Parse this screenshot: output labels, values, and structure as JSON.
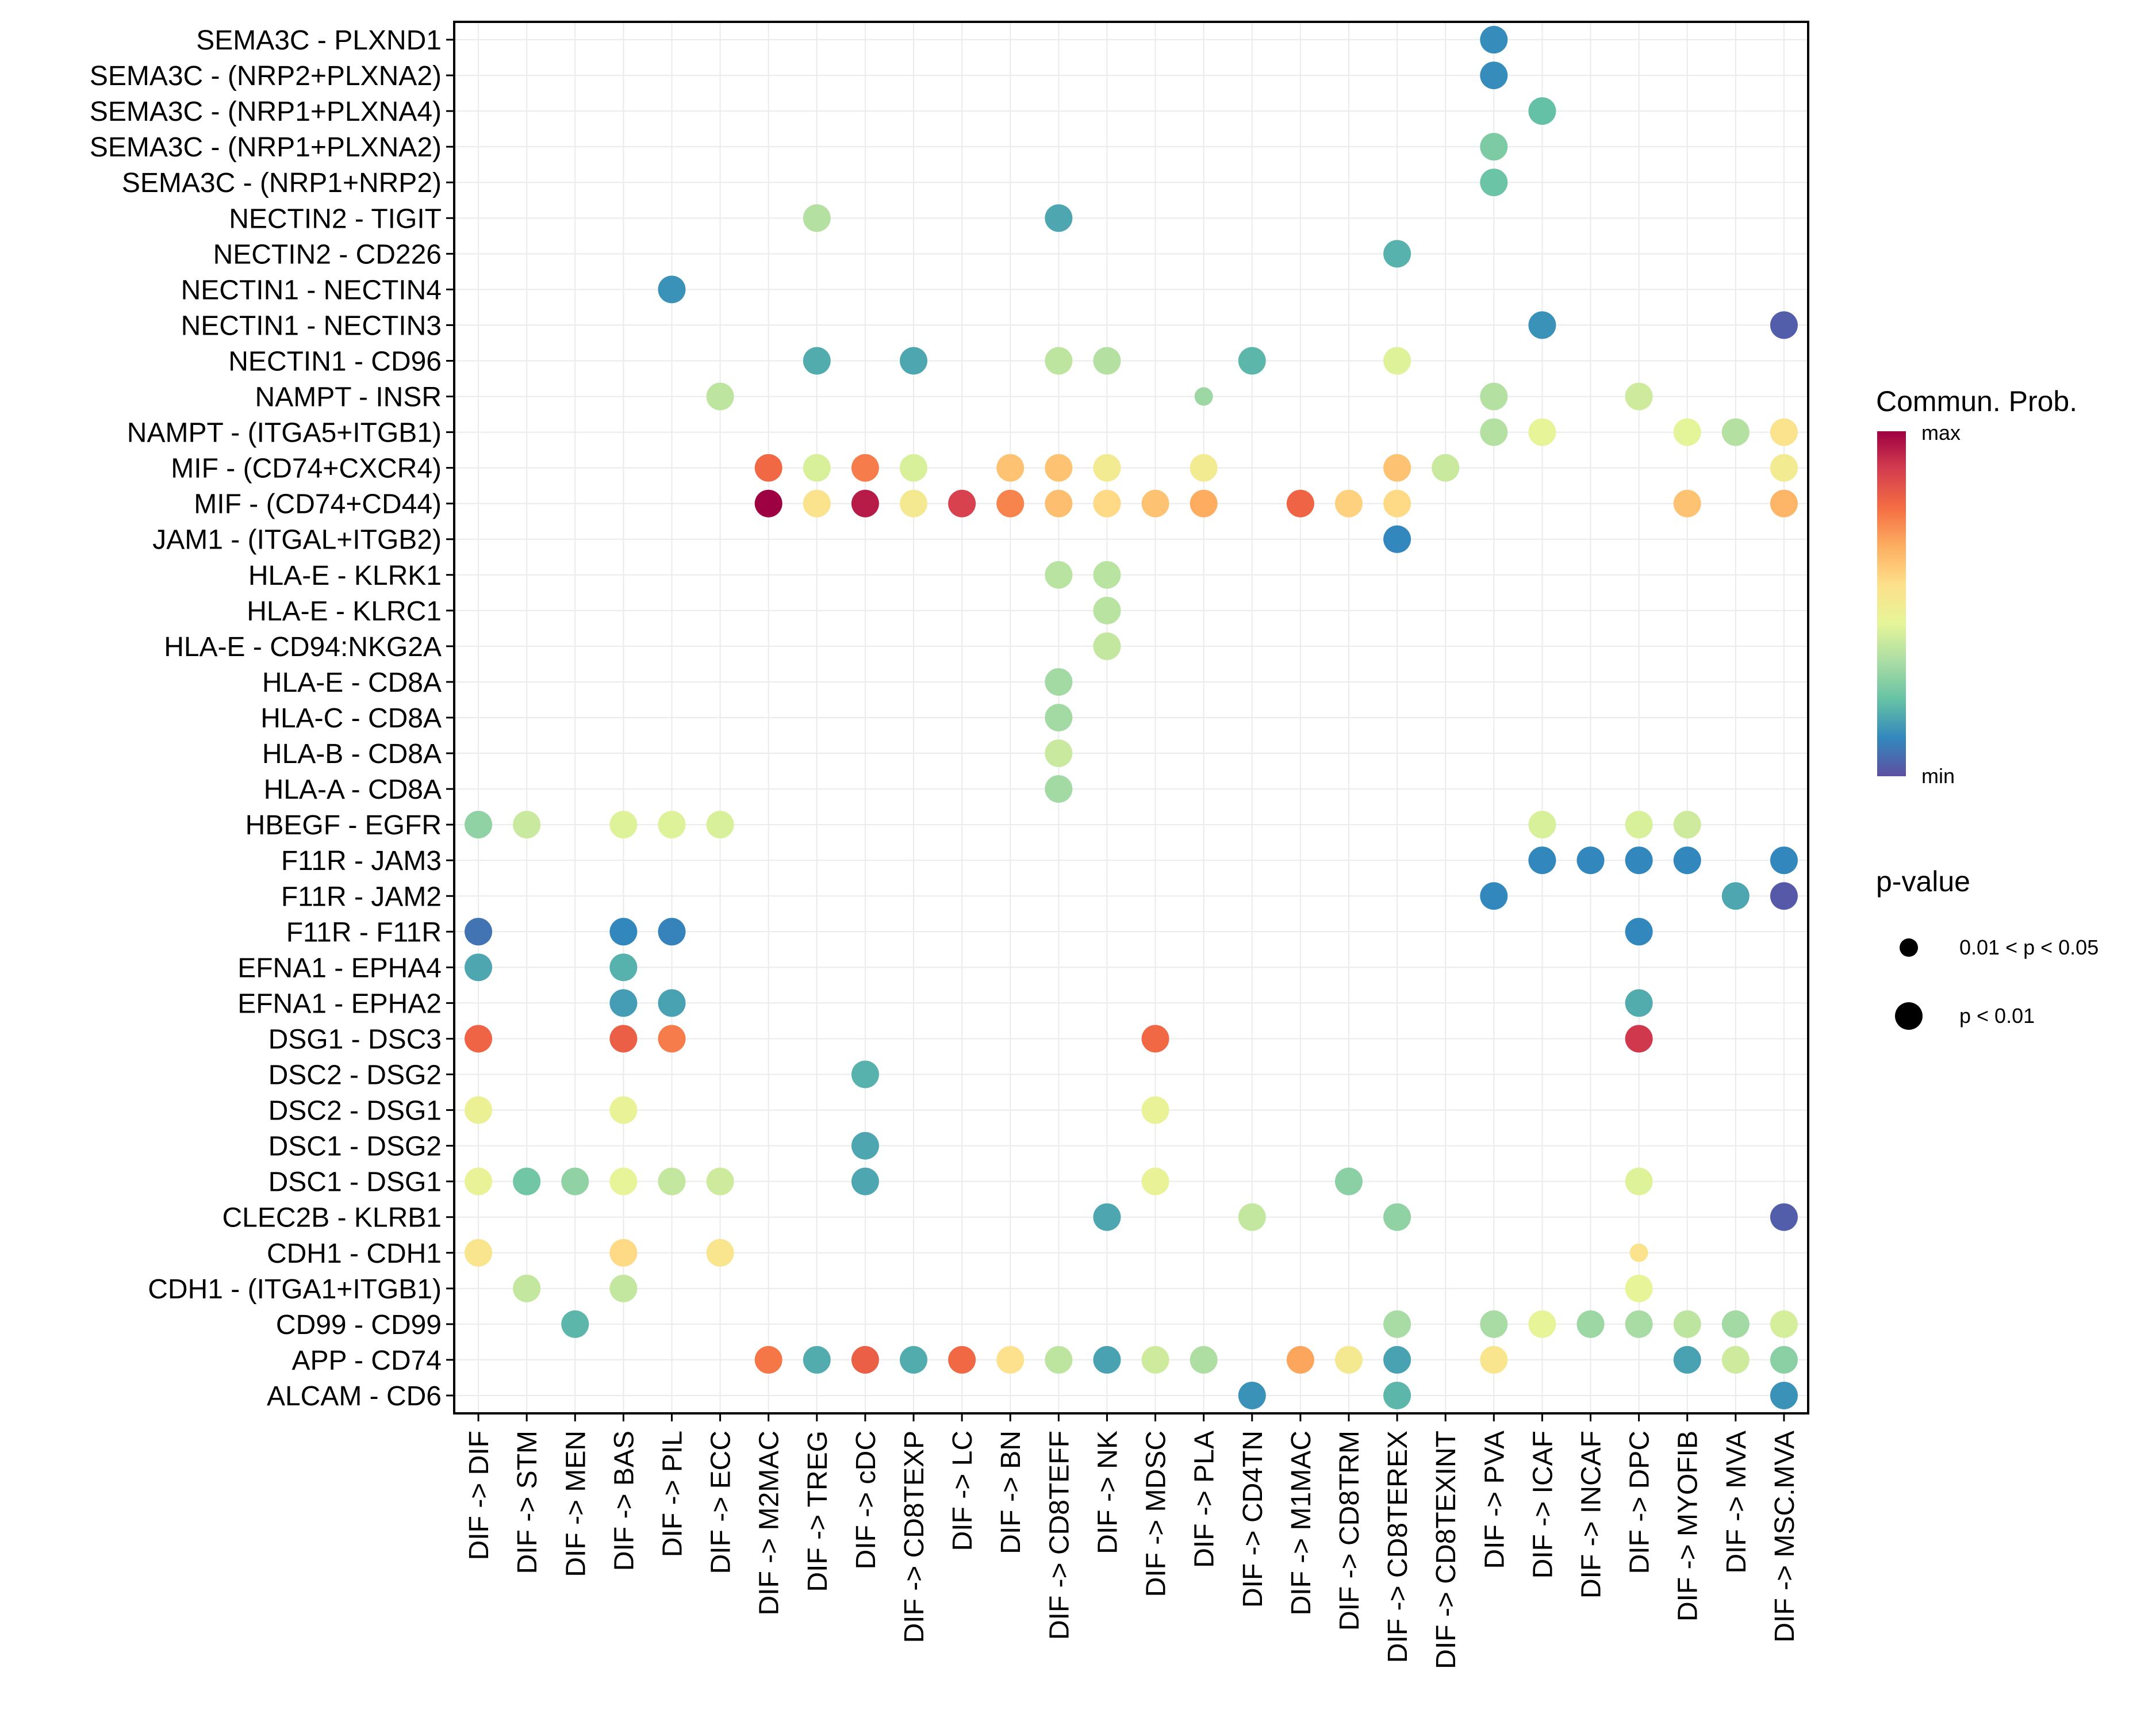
{
  "chart_data": {
    "type": "scatter",
    "subtype": "dot-plot",
    "title": "",
    "xlabel": "",
    "ylabel": "",
    "grid": true,
    "legend_position": "right",
    "x_categories": [
      "DIF -> DIF",
      "DIF -> STM",
      "DIF -> MEN",
      "DIF -> BAS",
      "DIF -> PIL",
      "DIF -> ECC",
      "DIF -> M2MAC",
      "DIF -> TREG",
      "DIF -> cDC",
      "DIF -> CD8TEXP",
      "DIF -> LC",
      "DIF -> BN",
      "DIF -> CD8TEFF",
      "DIF -> NK",
      "DIF -> MDSC",
      "DIF -> PLA",
      "DIF -> CD4TN",
      "DIF -> M1MAC",
      "DIF -> CD8TRM",
      "DIF -> CD8TEREX",
      "DIF -> CD8TEXINT",
      "DIF -> PVA",
      "DIF -> ICAF",
      "DIF -> INCAF",
      "DIF -> DPC",
      "DIF -> MYOFIB",
      "DIF -> MVA",
      "DIF -> MSC.MVA"
    ],
    "y_categories": [
      "SEMA3C - PLXND1",
      "SEMA3C - (NRP2+PLXNA2)",
      "SEMA3C - (NRP1+PLXNA4)",
      "SEMA3C - (NRP1+PLXNA2)",
      "SEMA3C - (NRP1+NRP2)",
      "NECTIN2 - TIGIT",
      "NECTIN2 - CD226",
      "NECTIN1 - NECTIN4",
      "NECTIN1 - NECTIN3",
      "NECTIN1 - CD96",
      "NAMPT - INSR",
      "NAMPT - (ITGA5+ITGB1)",
      "MIF - (CD74+CXCR4)",
      "MIF - (CD74+CD44)",
      "JAM1 - (ITGAL+ITGB2)",
      "HLA-E - KLRK1",
      "HLA-E - KLRC1",
      "HLA-E - CD94:NKG2A",
      "HLA-E - CD8A",
      "HLA-C - CD8A",
      "HLA-B - CD8A",
      "HLA-A - CD8A",
      "HBEGF - EGFR",
      "F11R - JAM3",
      "F11R - JAM2",
      "F11R - F11R",
      "EFNA1 - EPHA4",
      "EFNA1 - EPHA2",
      "DSG1 - DSC3",
      "DSC2 - DSG2",
      "DSC2 - DSG1",
      "DSC1 - DSG2",
      "DSC1 - DSG1",
      "CLEC2B - KLRB1",
      "CDH1 - CDH1",
      "CDH1 - (ITGA1+ITGB1)",
      "CD99 - CD99",
      "APP - CD74",
      "ALCAM - CD6"
    ],
    "color_legend": {
      "title": "Commun. Prob.",
      "min_label": "min",
      "max_label": "max",
      "palette": [
        "#5E4FA2",
        "#3288BD",
        "#66C2A5",
        "#ABDDA4",
        "#E6F598",
        "#FEE08B",
        "#FDAE61",
        "#F46D43",
        "#D53E4F",
        "#9E0142"
      ]
    },
    "size_legend": {
      "title": "p-value",
      "entries": [
        {
          "label": "0.01 < p < 0.05",
          "size": "small"
        },
        {
          "label": "p < 0.01",
          "size": "large"
        }
      ]
    },
    "points_note": "prob is relative communication probability on a 0 (min) to 1 (max) scale; p is p-value class: 'small' = 0.01<p<0.05, 'large' = p<0.01",
    "points": [
      {
        "y": "SEMA3C - PLXND1",
        "x": "DIF -> PVA",
        "prob": 0.12,
        "p": "large"
      },
      {
        "y": "SEMA3C - (NRP2+PLXNA2)",
        "x": "DIF -> PVA",
        "prob": 0.12,
        "p": "large"
      },
      {
        "y": "SEMA3C - (NRP1+PLXNA4)",
        "x": "DIF -> ICAF",
        "prob": 0.22,
        "p": "large"
      },
      {
        "y": "SEMA3C - (NRP1+PLXNA2)",
        "x": "DIF -> PVA",
        "prob": 0.26,
        "p": "large"
      },
      {
        "y": "SEMA3C - (NRP1+NRP2)",
        "x": "DIF -> PVA",
        "prob": 0.23,
        "p": "large"
      },
      {
        "y": "NECTIN2 - TIGIT",
        "x": "DIF -> TREG",
        "prob": 0.35,
        "p": "large"
      },
      {
        "y": "NECTIN2 - TIGIT",
        "x": "DIF -> CD8TEFF",
        "prob": 0.17,
        "p": "large"
      },
      {
        "y": "NECTIN2 - CD226",
        "x": "DIF -> CD8TEREX",
        "prob": 0.19,
        "p": "large"
      },
      {
        "y": "NECTIN1 - NECTIN4",
        "x": "DIF -> PIL",
        "prob": 0.13,
        "p": "large"
      },
      {
        "y": "NECTIN1 - NECTIN3",
        "x": "DIF -> ICAF",
        "prob": 0.13,
        "p": "large"
      },
      {
        "y": "NECTIN1 - NECTIN3",
        "x": "DIF -> MSC.MVA",
        "prob": 0.03,
        "p": "large"
      },
      {
        "y": "NECTIN1 - CD96",
        "x": "DIF -> TREG",
        "prob": 0.18,
        "p": "large"
      },
      {
        "y": "NECTIN1 - CD96",
        "x": "DIF -> CD8TEXP",
        "prob": 0.17,
        "p": "large"
      },
      {
        "y": "NECTIN1 - CD96",
        "x": "DIF -> CD8TEFF",
        "prob": 0.37,
        "p": "large"
      },
      {
        "y": "NECTIN1 - CD96",
        "x": "DIF -> NK",
        "prob": 0.35,
        "p": "large"
      },
      {
        "y": "NECTIN1 - CD96",
        "x": "DIF -> CD4TN",
        "prob": 0.2,
        "p": "large"
      },
      {
        "y": "NECTIN1 - CD96",
        "x": "DIF -> CD8TEREX",
        "prob": 0.43,
        "p": "large"
      },
      {
        "y": "NAMPT - INSR",
        "x": "DIF -> ECC",
        "prob": 0.37,
        "p": "large"
      },
      {
        "y": "NAMPT - INSR",
        "x": "DIF -> PLA",
        "prob": 0.31,
        "p": "small"
      },
      {
        "y": "NAMPT - INSR",
        "x": "DIF -> PVA",
        "prob": 0.35,
        "p": "large"
      },
      {
        "y": "NAMPT - INSR",
        "x": "DIF -> DPC",
        "prob": 0.4,
        "p": "large"
      },
      {
        "y": "NAMPT - (ITGA5+ITGB1)",
        "x": "DIF -> PVA",
        "prob": 0.35,
        "p": "large"
      },
      {
        "y": "NAMPT - (ITGA5+ITGB1)",
        "x": "DIF -> ICAF",
        "prob": 0.45,
        "p": "large"
      },
      {
        "y": "NAMPT - (ITGA5+ITGB1)",
        "x": "DIF -> MYOFIB",
        "prob": 0.44,
        "p": "large"
      },
      {
        "y": "NAMPT - (ITGA5+ITGB1)",
        "x": "DIF -> MVA",
        "prob": 0.35,
        "p": "large"
      },
      {
        "y": "NAMPT - (ITGA5+ITGB1)",
        "x": "DIF -> MSC.MVA",
        "prob": 0.54,
        "p": "large"
      },
      {
        "y": "MIF - (CD74+CXCR4)",
        "x": "DIF -> M2MAC",
        "prob": 0.79,
        "p": "large"
      },
      {
        "y": "MIF - (CD74+CXCR4)",
        "x": "DIF -> TREG",
        "prob": 0.42,
        "p": "large"
      },
      {
        "y": "MIF - (CD74+CXCR4)",
        "x": "DIF -> cDC",
        "prob": 0.75,
        "p": "large"
      },
      {
        "y": "MIF - (CD74+CXCR4)",
        "x": "DIF -> CD8TEXP",
        "prob": 0.42,
        "p": "large"
      },
      {
        "y": "MIF - (CD74+CXCR4)",
        "x": "DIF -> BN",
        "prob": 0.62,
        "p": "large"
      },
      {
        "y": "MIF - (CD74+CXCR4)",
        "x": "DIF -> CD8TEFF",
        "prob": 0.62,
        "p": "large"
      },
      {
        "y": "MIF - (CD74+CXCR4)",
        "x": "DIF -> NK",
        "prob": 0.5,
        "p": "large"
      },
      {
        "y": "MIF - (CD74+CXCR4)",
        "x": "DIF -> PLA",
        "prob": 0.5,
        "p": "large"
      },
      {
        "y": "MIF - (CD74+CXCR4)",
        "x": "DIF -> CD8TEREX",
        "prob": 0.62,
        "p": "large"
      },
      {
        "y": "MIF - (CD74+CXCR4)",
        "x": "DIF -> CD8TEXINT",
        "prob": 0.39,
        "p": "large"
      },
      {
        "y": "MIF - (CD74+CXCR4)",
        "x": "DIF -> MSC.MVA",
        "prob": 0.5,
        "p": "large"
      },
      {
        "y": "MIF - (CD74+CD44)",
        "x": "DIF -> M2MAC",
        "prob": 1.0,
        "p": "large"
      },
      {
        "y": "MIF - (CD74+CD44)",
        "x": "DIF -> TREG",
        "prob": 0.54,
        "p": "large"
      },
      {
        "y": "MIF - (CD74+CD44)",
        "x": "DIF -> cDC",
        "prob": 0.95,
        "p": "large"
      },
      {
        "y": "MIF - (CD74+CD44)",
        "x": "DIF -> CD8TEXP",
        "prob": 0.51,
        "p": "large"
      },
      {
        "y": "MIF - (CD74+CD44)",
        "x": "DIF -> LC",
        "prob": 0.88,
        "p": "large"
      },
      {
        "y": "MIF - (CD74+CD44)",
        "x": "DIF -> BN",
        "prob": 0.74,
        "p": "large"
      },
      {
        "y": "MIF - (CD74+CD44)",
        "x": "DIF -> CD8TEFF",
        "prob": 0.63,
        "p": "large"
      },
      {
        "y": "MIF - (CD74+CD44)",
        "x": "DIF -> NK",
        "prob": 0.57,
        "p": "large"
      },
      {
        "y": "MIF - (CD74+CD44)",
        "x": "DIF -> MDSC",
        "prob": 0.62,
        "p": "large"
      },
      {
        "y": "MIF - (CD74+CD44)",
        "x": "DIF -> PLA",
        "prob": 0.67,
        "p": "large"
      },
      {
        "y": "MIF - (CD74+CD44)",
        "x": "DIF -> M1MAC",
        "prob": 0.8,
        "p": "large"
      },
      {
        "y": "MIF - (CD74+CD44)",
        "x": "DIF -> CD8TRM",
        "prob": 0.59,
        "p": "large"
      },
      {
        "y": "MIF - (CD74+CD44)",
        "x": "DIF -> CD8TEREX",
        "prob": 0.57,
        "p": "large"
      },
      {
        "y": "MIF - (CD74+CD44)",
        "x": "DIF -> MYOFIB",
        "prob": 0.62,
        "p": "large"
      },
      {
        "y": "MIF - (CD74+CD44)",
        "x": "DIF -> MSC.MVA",
        "prob": 0.65,
        "p": "large"
      },
      {
        "y": "JAM1 - (ITGAL+ITGB2)",
        "x": "DIF -> CD8TEREX",
        "prob": 0.11,
        "p": "large"
      },
      {
        "y": "HLA-E - KLRK1",
        "x": "DIF -> CD8TEFF",
        "prob": 0.36,
        "p": "large"
      },
      {
        "y": "HLA-E - KLRK1",
        "x": "DIF -> NK",
        "prob": 0.36,
        "p": "large"
      },
      {
        "y": "HLA-E - KLRC1",
        "x": "DIF -> NK",
        "prob": 0.36,
        "p": "large"
      },
      {
        "y": "HLA-E - CD94:NKG2A",
        "x": "DIF -> NK",
        "prob": 0.38,
        "p": "large"
      },
      {
        "y": "HLA-E - CD8A",
        "x": "DIF -> CD8TEFF",
        "prob": 0.32,
        "p": "large"
      },
      {
        "y": "HLA-C - CD8A",
        "x": "DIF -> CD8TEFF",
        "prob": 0.32,
        "p": "large"
      },
      {
        "y": "HLA-B - CD8A",
        "x": "DIF -> CD8TEFF",
        "prob": 0.39,
        "p": "large"
      },
      {
        "y": "HLA-A - CD8A",
        "x": "DIF -> CD8TEFF",
        "prob": 0.32,
        "p": "large"
      },
      {
        "y": "HBEGF - EGFR",
        "x": "DIF -> DIF",
        "prob": 0.29,
        "p": "large"
      },
      {
        "y": "HBEGF - EGFR",
        "x": "DIF -> STM",
        "prob": 0.39,
        "p": "large"
      },
      {
        "y": "HBEGF - EGFR",
        "x": "DIF -> BAS",
        "prob": 0.43,
        "p": "large"
      },
      {
        "y": "HBEGF - EGFR",
        "x": "DIF -> PIL",
        "prob": 0.43,
        "p": "large"
      },
      {
        "y": "HBEGF - EGFR",
        "x": "DIF -> ECC",
        "prob": 0.42,
        "p": "large"
      },
      {
        "y": "HBEGF - EGFR",
        "x": "DIF -> ICAF",
        "prob": 0.42,
        "p": "large"
      },
      {
        "y": "HBEGF - EGFR",
        "x": "DIF -> DPC",
        "prob": 0.42,
        "p": "large"
      },
      {
        "y": "HBEGF - EGFR",
        "x": "DIF -> MYOFIB",
        "prob": 0.4,
        "p": "large"
      },
      {
        "y": "F11R - JAM3",
        "x": "DIF -> ICAF",
        "prob": 0.11,
        "p": "large"
      },
      {
        "y": "F11R - JAM3",
        "x": "DIF -> INCAF",
        "prob": 0.11,
        "p": "large"
      },
      {
        "y": "F11R - JAM3",
        "x": "DIF -> DPC",
        "prob": 0.11,
        "p": "large"
      },
      {
        "y": "F11R - JAM3",
        "x": "DIF -> MYOFIB",
        "prob": 0.11,
        "p": "large"
      },
      {
        "y": "F11R - JAM3",
        "x": "DIF -> MSC.MVA",
        "prob": 0.11,
        "p": "large"
      },
      {
        "y": "F11R - JAM2",
        "x": "DIF -> PVA",
        "prob": 0.11,
        "p": "large"
      },
      {
        "y": "F11R - JAM2",
        "x": "DIF -> MVA",
        "prob": 0.17,
        "p": "large"
      },
      {
        "y": "F11R - JAM2",
        "x": "DIF -> MSC.MVA",
        "prob": 0.02,
        "p": "large"
      },
      {
        "y": "F11R - F11R",
        "x": "DIF -> DIF",
        "prob": 0.07,
        "p": "large"
      },
      {
        "y": "F11R - F11R",
        "x": "DIF -> BAS",
        "prob": 0.11,
        "p": "large"
      },
      {
        "y": "F11R - F11R",
        "x": "DIF -> PIL",
        "prob": 0.1,
        "p": "large"
      },
      {
        "y": "F11R - F11R",
        "x": "DIF -> DPC",
        "prob": 0.11,
        "p": "large"
      },
      {
        "y": "EFNA1 - EPHA4",
        "x": "DIF -> DIF",
        "prob": 0.17,
        "p": "large"
      },
      {
        "y": "EFNA1 - EPHA4",
        "x": "DIF -> BAS",
        "prob": 0.19,
        "p": "large"
      },
      {
        "y": "EFNA1 - EPHA2",
        "x": "DIF -> BAS",
        "prob": 0.15,
        "p": "large"
      },
      {
        "y": "EFNA1 - EPHA2",
        "x": "DIF -> PIL",
        "prob": 0.16,
        "p": "large"
      },
      {
        "y": "EFNA1 - EPHA2",
        "x": "DIF -> DPC",
        "prob": 0.18,
        "p": "large"
      },
      {
        "y": "DSG1 - DSC3",
        "x": "DIF -> DIF",
        "prob": 0.8,
        "p": "large"
      },
      {
        "y": "DSG1 - DSC3",
        "x": "DIF -> BAS",
        "prob": 0.81,
        "p": "large"
      },
      {
        "y": "DSG1 - DSC3",
        "x": "DIF -> PIL",
        "prob": 0.75,
        "p": "large"
      },
      {
        "y": "DSG1 - DSC3",
        "x": "DIF -> MDSC",
        "prob": 0.79,
        "p": "large"
      },
      {
        "y": "DSG1 - DSC3",
        "x": "DIF -> DPC",
        "prob": 0.9,
        "p": "large"
      },
      {
        "y": "DSC2 - DSG2",
        "x": "DIF -> cDC",
        "prob": 0.19,
        "p": "large"
      },
      {
        "y": "DSC2 - DSG1",
        "x": "DIF -> DIF",
        "prob": 0.47,
        "p": "large"
      },
      {
        "y": "DSC2 - DSG1",
        "x": "DIF -> BAS",
        "prob": 0.46,
        "p": "large"
      },
      {
        "y": "DSC2 - DSG1",
        "x": "DIF -> MDSC",
        "prob": 0.46,
        "p": "large"
      },
      {
        "y": "DSC1 - DSG2",
        "x": "DIF -> cDC",
        "prob": 0.17,
        "p": "large"
      },
      {
        "y": "DSC1 - DSG1",
        "x": "DIF -> DIF",
        "prob": 0.46,
        "p": "large"
      },
      {
        "y": "DSC1 - DSG1",
        "x": "DIF -> STM",
        "prob": 0.24,
        "p": "large"
      },
      {
        "y": "DSC1 - DSG1",
        "x": "DIF -> MEN",
        "prob": 0.29,
        "p": "large"
      },
      {
        "y": "DSC1 - DSG1",
        "x": "DIF -> BAS",
        "prob": 0.45,
        "p": "large"
      },
      {
        "y": "DSC1 - DSG1",
        "x": "DIF -> PIL",
        "prob": 0.38,
        "p": "large"
      },
      {
        "y": "DSC1 - DSG1",
        "x": "DIF -> ECC",
        "prob": 0.4,
        "p": "large"
      },
      {
        "y": "DSC1 - DSG1",
        "x": "DIF -> cDC",
        "prob": 0.17,
        "p": "large"
      },
      {
        "y": "DSC1 - DSG1",
        "x": "DIF -> MDSC",
        "prob": 0.46,
        "p": "large"
      },
      {
        "y": "DSC1 - DSG1",
        "x": "DIF -> CD8TRM",
        "prob": 0.28,
        "p": "large"
      },
      {
        "y": "DSC1 - DSG1",
        "x": "DIF -> DPC",
        "prob": 0.43,
        "p": "large"
      },
      {
        "y": "CLEC2B - KLRB1",
        "x": "DIF -> NK",
        "prob": 0.17,
        "p": "large"
      },
      {
        "y": "CLEC2B - KLRB1",
        "x": "DIF -> CD4TN",
        "prob": 0.38,
        "p": "large"
      },
      {
        "y": "CLEC2B - KLRB1",
        "x": "DIF -> CD8TEREX",
        "prob": 0.29,
        "p": "large"
      },
      {
        "y": "CLEC2B - KLRB1",
        "x": "DIF -> MSC.MVA",
        "prob": 0.03,
        "p": "large"
      },
      {
        "y": "CDH1 - CDH1",
        "x": "DIF -> DIF",
        "prob": 0.53,
        "p": "large"
      },
      {
        "y": "CDH1 - CDH1",
        "x": "DIF -> BAS",
        "prob": 0.57,
        "p": "large"
      },
      {
        "y": "CDH1 - CDH1",
        "x": "DIF -> ECC",
        "prob": 0.53,
        "p": "large"
      },
      {
        "y": "CDH1 - CDH1",
        "x": "DIF -> DPC",
        "prob": 0.54,
        "p": "small"
      },
      {
        "y": "CDH1 - (ITGA1+ITGB1)",
        "x": "DIF -> STM",
        "prob": 0.38,
        "p": "large"
      },
      {
        "y": "CDH1 - (ITGA1+ITGB1)",
        "x": "DIF -> BAS",
        "prob": 0.38,
        "p": "large"
      },
      {
        "y": "CDH1 - (ITGA1+ITGB1)",
        "x": "DIF -> DPC",
        "prob": 0.45,
        "p": "large"
      },
      {
        "y": "CD99 - CD99",
        "x": "DIF -> MEN",
        "prob": 0.2,
        "p": "large"
      },
      {
        "y": "CD99 - CD99",
        "x": "DIF -> CD8TEREX",
        "prob": 0.33,
        "p": "large"
      },
      {
        "y": "CD99 - CD99",
        "x": "DIF -> PVA",
        "prob": 0.33,
        "p": "large"
      },
      {
        "y": "CD99 - CD99",
        "x": "DIF -> ICAF",
        "prob": 0.45,
        "p": "large"
      },
      {
        "y": "CD99 - CD99",
        "x": "DIF -> INCAF",
        "prob": 0.31,
        "p": "large"
      },
      {
        "y": "CD99 - CD99",
        "x": "DIF -> DPC",
        "prob": 0.33,
        "p": "large"
      },
      {
        "y": "CD99 - CD99",
        "x": "DIF -> MYOFIB",
        "prob": 0.37,
        "p": "large"
      },
      {
        "y": "CD99 - CD99",
        "x": "DIF -> MVA",
        "prob": 0.32,
        "p": "large"
      },
      {
        "y": "CD99 - CD99",
        "x": "DIF -> MSC.MVA",
        "prob": 0.41,
        "p": "large"
      },
      {
        "y": "APP - CD74",
        "x": "DIF -> M2MAC",
        "prob": 0.76,
        "p": "large"
      },
      {
        "y": "APP - CD74",
        "x": "DIF -> TREG",
        "prob": 0.18,
        "p": "large"
      },
      {
        "y": "APP - CD74",
        "x": "DIF -> cDC",
        "prob": 0.81,
        "p": "large"
      },
      {
        "y": "APP - CD74",
        "x": "DIF -> CD8TEXP",
        "prob": 0.18,
        "p": "large"
      },
      {
        "y": "APP - CD74",
        "x": "DIF -> LC",
        "prob": 0.79,
        "p": "large"
      },
      {
        "y": "APP - CD74",
        "x": "DIF -> BN",
        "prob": 0.55,
        "p": "large"
      },
      {
        "y": "APP - CD74",
        "x": "DIF -> CD8TEFF",
        "prob": 0.37,
        "p": "large"
      },
      {
        "y": "APP - CD74",
        "x": "DIF -> NK",
        "prob": 0.16,
        "p": "large"
      },
      {
        "y": "APP - CD74",
        "x": "DIF -> MDSC",
        "prob": 0.4,
        "p": "large"
      },
      {
        "y": "APP - CD74",
        "x": "DIF -> PLA",
        "prob": 0.34,
        "p": "large"
      },
      {
        "y": "APP - CD74",
        "x": "DIF -> M1MAC",
        "prob": 0.68,
        "p": "large"
      },
      {
        "y": "APP - CD74",
        "x": "DIF -> CD8TRM",
        "prob": 0.51,
        "p": "large"
      },
      {
        "y": "APP - CD74",
        "x": "DIF -> CD8TEREX",
        "prob": 0.16,
        "p": "large"
      },
      {
        "y": "APP - CD74",
        "x": "DIF -> PVA",
        "prob": 0.53,
        "p": "large"
      },
      {
        "y": "APP - CD74",
        "x": "DIF -> MYOFIB",
        "prob": 0.16,
        "p": "large"
      },
      {
        "y": "APP - CD74",
        "x": "DIF -> MVA",
        "prob": 0.4,
        "p": "large"
      },
      {
        "y": "APP - CD74",
        "x": "DIF -> MSC.MVA",
        "prob": 0.28,
        "p": "large"
      },
      {
        "y": "ALCAM - CD6",
        "x": "DIF -> CD4TN",
        "prob": 0.13,
        "p": "large"
      },
      {
        "y": "ALCAM - CD6",
        "x": "DIF -> CD8TEREX",
        "prob": 0.2,
        "p": "large"
      },
      {
        "y": "ALCAM - CD6",
        "x": "DIF -> MSC.MVA",
        "prob": 0.13,
        "p": "large"
      }
    ]
  }
}
